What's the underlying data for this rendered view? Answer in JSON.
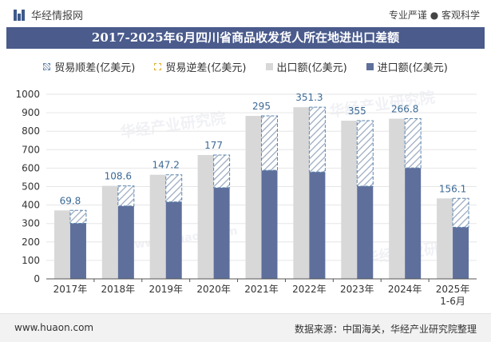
{
  "header": {
    "brand": "华经情报网",
    "slogan": "专业严谨 ● 客观科学"
  },
  "footer": {
    "site": "www.huaon.com",
    "source": "数据来源：中国海关，华经产业研究院整理"
  },
  "watermark": {
    "text": "华经产业研究院",
    "site": "www.huaon.com"
  },
  "colors": {
    "title_bg": "#4a5b8c",
    "export": "#d8d8d8",
    "import": "#5f6f9c",
    "surplus_border": "#5b86b0",
    "surplus_hatch": "#9aaac0",
    "deficit_border": "#e0b030",
    "surplus_label": "#3c6a96"
  },
  "chart_data": {
    "type": "bar",
    "title": "2017-2025年6月四川省商品收发货人所在地进出口差额",
    "categories": [
      "2017年",
      "2018年",
      "2019年",
      "2020年",
      "2021年",
      "2022年",
      "2023年",
      "2024年",
      "2025年\n1-6月"
    ],
    "series": [
      {
        "name": "贸易顺差(亿美元)",
        "values": [
          69.8,
          108.6,
          147.2,
          177,
          295,
          351.3,
          355,
          266.8,
          156.1
        ]
      },
      {
        "name": "贸易逆差(亿美元)",
        "values": [
          0,
          0,
          0,
          0,
          0,
          0,
          0,
          0,
          0
        ]
      },
      {
        "name": "出口额(亿美元)",
        "values": [
          371,
          504,
          564,
          671,
          883,
          930,
          857,
          868,
          436
        ]
      },
      {
        "name": "进口额(亿美元)",
        "values": [
          301,
          395,
          417,
          494,
          588,
          579,
          502,
          601,
          280
        ]
      }
    ],
    "data_labels": [
      "69.8",
      "108.6",
      "147.2",
      "177",
      "295",
      "351.3",
      "355",
      "266.8",
      "156.1"
    ],
    "yticks": [
      0,
      100,
      200,
      300,
      400,
      500,
      600,
      700,
      800,
      900,
      1000
    ],
    "ylim": [
      0,
      1000
    ],
    "xlabel": "",
    "ylabel": "",
    "legend_position": "top"
  }
}
